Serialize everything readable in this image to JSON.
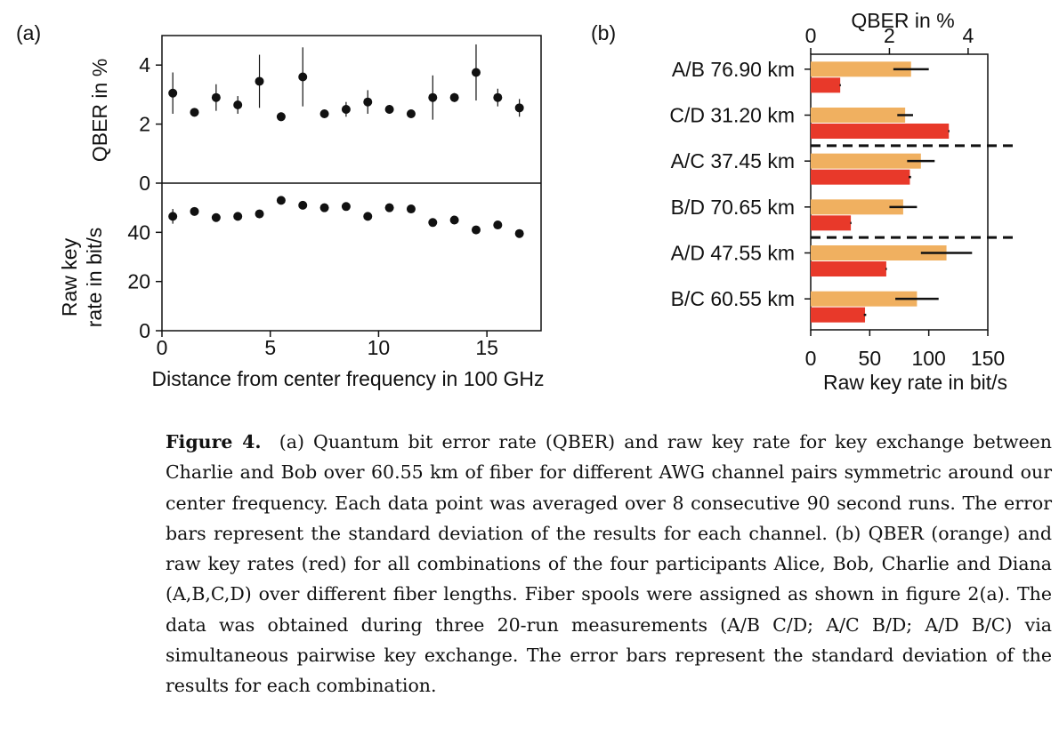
{
  "panel_labels": {
    "a": "(a)",
    "b": "(b)"
  },
  "caption": {
    "label": "Figure 4.",
    "text": "(a) Quantum bit error rate (QBER) and raw key rate for key exchange between Charlie and Bob over 60.55 km of fiber for different AWG channel pairs symmetric around our center frequency. Each data point was averaged over 8 consecutive 90 second runs. The error bars represent the standard deviation of the results for each channel. (b) QBER (orange) and raw key rates (red) for all combinations of the four participants Alice, Bob, Charlie and Diana (A,B,C,D) over different fiber lengths. Fiber spools were assigned as shown in figure 2(a). The data was obtained during three 20-run measurements (A/B C/D; A/C B/D; A/D B/C) via simultaneous pairwise key exchange. The error bars represent the standard deviation of the results for each combination."
  },
  "colors": {
    "qber": "#f0b060",
    "raw": "#e8392a",
    "ink": "#111111"
  },
  "chart_data": [
    {
      "type": "scatter",
      "panel": "a",
      "title": "",
      "xlabel": "Distance from center frequency in 100 GHz",
      "xlim": [
        0,
        17.5
      ],
      "xticks": [
        0,
        5,
        10,
        15
      ],
      "subplots": [
        {
          "ylabel": "QBER in %",
          "ylim": [
            0,
            5
          ],
          "yticks": [
            0,
            2,
            4
          ],
          "x": [
            0.5,
            1.5,
            2.5,
            3.5,
            4.5,
            5.5,
            6.5,
            7.5,
            8.5,
            9.5,
            10.5,
            11.5,
            12.5,
            13.5,
            14.5,
            15.5,
            16.5
          ],
          "y": [
            3.05,
            2.4,
            2.9,
            2.65,
            3.45,
            2.25,
            3.6,
            2.35,
            2.5,
            2.75,
            2.5,
            2.35,
            2.9,
            2.9,
            3.75,
            2.9,
            2.55
          ],
          "err": [
            0.7,
            0.1,
            0.45,
            0.3,
            0.9,
            0.15,
            1.0,
            0.1,
            0.25,
            0.4,
            0.15,
            0.1,
            0.75,
            0.15,
            0.95,
            0.3,
            0.3
          ]
        },
        {
          "ylabel": "Raw key rate in bit/s",
          "ylim": [
            0,
            60
          ],
          "yticks": [
            0,
            20,
            40
          ],
          "x": [
            0.5,
            1.5,
            2.5,
            3.5,
            4.5,
            5.5,
            6.5,
            7.5,
            8.5,
            9.5,
            10.5,
            11.5,
            12.5,
            13.5,
            14.5,
            15.5,
            16.5
          ],
          "y": [
            46.5,
            48.5,
            46,
            46.5,
            47.5,
            53,
            51,
            50,
            50.5,
            46.5,
            50,
            49.5,
            44,
            45,
            41,
            43,
            39.5
          ],
          "err": [
            3,
            1,
            0.5,
            0.5,
            1,
            1,
            1,
            0.5,
            0.5,
            1,
            0.5,
            0.5,
            1,
            0.5,
            1,
            0.5,
            1
          ]
        }
      ]
    },
    {
      "type": "bar",
      "panel": "b",
      "orientation": "horizontal",
      "title": "",
      "categories": [
        "A/B 76.90 km",
        "C/D 31.20 km",
        "A/C 37.45 km",
        "B/D 70.65 km",
        "A/D 47.55 km",
        "B/C 60.55 km"
      ],
      "top_axis": {
        "label": "QBER in %",
        "xlim": [
          0,
          4.5
        ],
        "ticks": [
          0,
          2,
          4
        ]
      },
      "bottom_axis": {
        "label": "Raw key rate in bit/s",
        "xlim": [
          0,
          150
        ],
        "ticks": [
          0,
          50,
          100,
          150
        ]
      },
      "series": [
        {
          "name": "QBER",
          "axis": "top",
          "values": [
            2.55,
            2.4,
            2.8,
            2.35,
            3.45,
            2.7
          ],
          "err": [
            0.45,
            0.2,
            0.35,
            0.35,
            0.65,
            0.55
          ]
        },
        {
          "name": "Raw key rate",
          "axis": "bottom",
          "values": [
            25,
            117,
            84,
            34,
            64,
            46
          ],
          "err": [
            0.5,
            0.5,
            1,
            0.5,
            0.5,
            1
          ]
        }
      ],
      "group_separators_after": [
        2,
        4
      ]
    }
  ]
}
